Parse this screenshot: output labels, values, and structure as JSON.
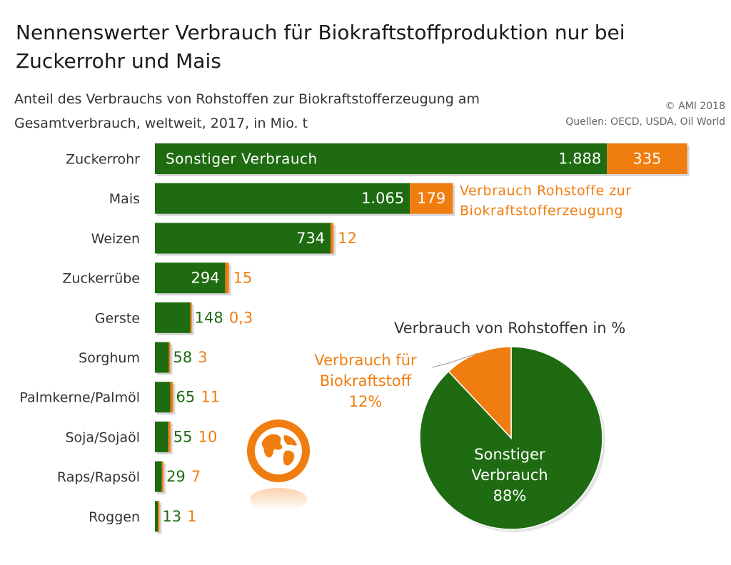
{
  "header": {
    "title": "Nennenswerter Verbrauch für Biokraftstoffproduktion nur bei Zuckerrohr und Mais",
    "subtitle": "Anteil des Verbrauchs von Rohstoffen zur Biokraftstofferzeugung am Gesamtverbrauch, weltweit, 2017, in Mio. t",
    "copyright": "© AMI 2018",
    "sources": "Quellen: OECD, USDA, Oil World"
  },
  "colors": {
    "green": "#1e6b12",
    "orange": "#f07d0f",
    "text": "#333333"
  },
  "chart_data": [
    {
      "type": "bar",
      "orientation": "horizontal",
      "stacked": true,
      "categories": [
        "Zuckerrohr",
        "Mais",
        "Weizen",
        "Zuckerrübe",
        "Gerste",
        "Sorghum",
        "Palmkerne/Palmöl",
        "Soja/Sojaöl",
        "Raps/Rapsöl",
        "Roggen"
      ],
      "series": [
        {
          "name": "Sonstiger Verbrauch",
          "color": "#1e6b12",
          "values": [
            1888,
            1065,
            734,
            294,
            148,
            58,
            65,
            55,
            29,
            13
          ],
          "labels": [
            "1.888",
            "1.065",
            "734",
            "294",
            "148",
            "58",
            "65",
            "55",
            "29",
            "13"
          ]
        },
        {
          "name": "Verbrauch Rohstoffe zur Biokraftstofferzeugung",
          "color": "#f07d0f",
          "values": [
            335,
            179,
            12,
            15,
            0.3,
            3,
            11,
            10,
            7,
            1
          ],
          "labels": [
            "335",
            "179",
            "12",
            "15",
            "0,3",
            "3",
            "11",
            "10",
            "7",
            "1"
          ]
        }
      ],
      "legend": "inline"
    },
    {
      "type": "pie",
      "title": "Verbrauch von Rohstoffen in %",
      "slices": [
        {
          "label": "Verbrauch für Biokraftstoff",
          "value": 12,
          "value_label": "12%",
          "color": "#f07d0f"
        },
        {
          "label": "Sonstiger Verbrauch",
          "value": 88,
          "value_label": "88%",
          "color": "#1e6b12"
        }
      ]
    }
  ]
}
